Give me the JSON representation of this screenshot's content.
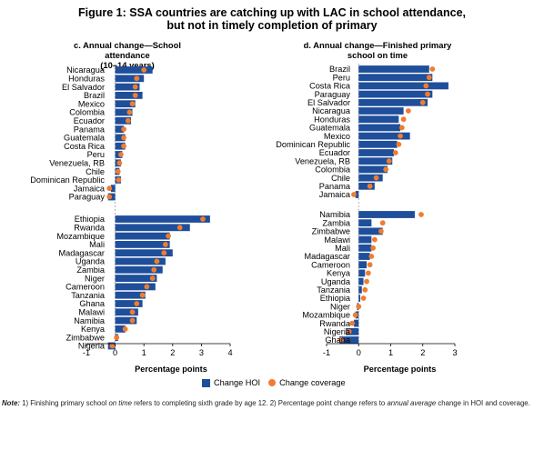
{
  "figure": {
    "title_line1": "Figure 1: SSA countries are catching up with LAC in school attendance,",
    "title_line2": "but not in timely completion of primary",
    "legend": {
      "hoi_label": "Change HOI",
      "coverage_label": "Change coverage"
    },
    "note_label": "Note:",
    "note_part1": " 1) Finishing primary school ",
    "note_italic1": "on time",
    "note_part2": " refers to completing sixth grade by age 12. 2) Percentage point change refers to ",
    "note_italic2": "annual average",
    "note_part3": " change in HOI and coverage."
  },
  "colors": {
    "hoi_bar": "#1f4e9a",
    "coverage_dot": "#ee7d31"
  },
  "chart_data": [
    {
      "type": "bar",
      "orientation": "horizontal",
      "title_line1": "c. Annual change—School attendance",
      "title_line2": "(10–14 years)",
      "xlabel": "Percentage points",
      "xlim": [
        -1,
        4
      ],
      "xticks": [
        -1,
        0,
        1,
        2,
        3,
        4
      ],
      "groups": [
        {
          "categories": [
            "Nicaragua",
            "Honduras",
            "El Salvador",
            "Brazil",
            "Mexico",
            "Colombia",
            "Ecuador",
            "Panama",
            "Guatemala",
            "Costa Rica",
            "Peru",
            "Venezuela, RB",
            "Chile",
            "Dominican Republic",
            "Jamaica",
            "Paraguay"
          ],
          "hoi": [
            1.3,
            1.0,
            0.85,
            0.95,
            0.7,
            0.6,
            0.55,
            0.3,
            0.35,
            0.35,
            0.25,
            0.2,
            0.15,
            0.2,
            -0.15,
            -0.25
          ],
          "coverage": [
            1.0,
            0.75,
            0.7,
            0.7,
            0.6,
            0.5,
            0.45,
            0.3,
            0.3,
            0.3,
            0.2,
            0.15,
            0.1,
            0.12,
            -0.2,
            -0.2
          ]
        },
        {
          "categories": [
            "Ethiopia",
            "Rwanda",
            "Mozambique",
            "Mali",
            "Madagascar",
            "Uganda",
            "Zambia",
            "Niger",
            "Cameroon",
            "Tanzania",
            "Ghana",
            "Malawi",
            "Namibia",
            "Kenya",
            "Zimbabwe",
            "Nigeria"
          ],
          "hoi": [
            3.3,
            2.6,
            1.9,
            1.9,
            2.0,
            1.75,
            1.65,
            1.45,
            1.4,
            1.05,
            0.95,
            0.8,
            0.75,
            0.35,
            0.1,
            -0.25
          ],
          "coverage": [
            3.05,
            2.25,
            1.85,
            1.75,
            1.7,
            1.45,
            1.35,
            1.3,
            1.1,
            0.95,
            0.75,
            0.6,
            0.6,
            0.35,
            0.05,
            -0.1
          ]
        }
      ]
    },
    {
      "type": "bar",
      "orientation": "horizontal",
      "title_line1": "d. Annual change—Finished primary",
      "title_line2": "school on time",
      "xlabel": "Percentage points",
      "xlim": [
        -1,
        3
      ],
      "xticks": [
        -1,
        0,
        1,
        2,
        3
      ],
      "groups": [
        {
          "categories": [
            "Brazil",
            "Peru",
            "Costa Rica",
            "Paraguay",
            "El Salvador",
            "Nicaragua",
            "Honduras",
            "Guatemala",
            "Mexico",
            "Dominican Republic",
            "Ecuador",
            "Venezuela, RB",
            "Colombia",
            "Chile",
            "Panama",
            "Jamaica"
          ],
          "hoi": [
            2.2,
            2.3,
            2.8,
            2.3,
            2.15,
            1.4,
            1.25,
            1.3,
            1.6,
            1.2,
            1.1,
            1.05,
            0.9,
            0.75,
            0.5,
            -0.1
          ],
          "coverage": [
            2.3,
            2.2,
            2.1,
            2.15,
            2.0,
            1.55,
            1.4,
            1.35,
            1.3,
            1.25,
            1.15,
            0.95,
            0.85,
            0.55,
            0.35,
            -0.15
          ]
        },
        {
          "categories": [
            "Namibia",
            "Zambia",
            "Zimbabwe",
            "Malawi",
            "Mali",
            "Madagascar",
            "Cameroon",
            "Kenya",
            "Uganda",
            "Tanzania",
            "Ethiopia",
            "Niger",
            "Mozambique",
            "Rwanda",
            "Nigeria",
            "Ghana"
          ],
          "hoi": [
            1.75,
            0.4,
            0.75,
            0.4,
            0.4,
            0.35,
            0.25,
            0.2,
            0.15,
            0.1,
            0.05,
            -0.05,
            -0.1,
            -0.15,
            -0.4,
            -0.6
          ],
          "coverage": [
            1.95,
            0.75,
            0.7,
            0.5,
            0.45,
            0.4,
            0.35,
            0.3,
            0.25,
            0.2,
            0.15,
            0.0,
            -0.1,
            -0.2,
            -0.3,
            -0.55
          ]
        }
      ]
    }
  ]
}
